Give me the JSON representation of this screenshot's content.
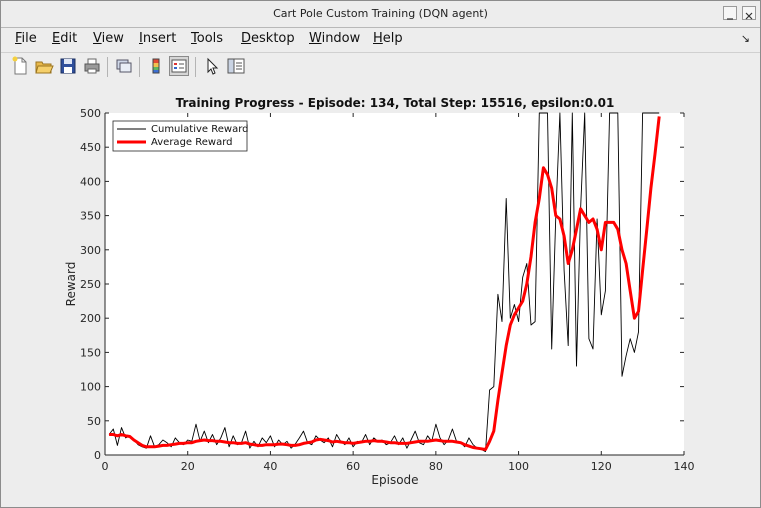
{
  "window": {
    "title": "Cart Pole Custom Training (DQN agent)"
  },
  "menu": {
    "items": [
      {
        "mnemonic": "F",
        "rest": "ile"
      },
      {
        "mnemonic": "E",
        "rest": "dit"
      },
      {
        "mnemonic": "V",
        "rest": "iew"
      },
      {
        "mnemonic": "I",
        "rest": "nsert"
      },
      {
        "mnemonic": "T",
        "rest": "ools"
      },
      {
        "mnemonic": "D",
        "rest": "esktop"
      },
      {
        "mnemonic": "W",
        "rest": "indow"
      },
      {
        "mnemonic": "H",
        "rest": "elp"
      }
    ],
    "dock_glyph": "↘"
  },
  "toolbar": {
    "icons": [
      "new-figure-icon",
      "open-file-icon",
      "save-icon",
      "print-icon",
      "link-axes-icon",
      "insert-colorbar-icon",
      "insert-legend-icon",
      "pointer-icon",
      "property-editor-icon"
    ]
  },
  "chart_data": {
    "type": "line",
    "title": "Training Progress - Episode: 134, Total Step: 15516, epsilon:0.01",
    "xlabel": "Episode",
    "ylabel": "Reward",
    "xlim": [
      0,
      140
    ],
    "ylim": [
      0,
      500
    ],
    "xticks": [
      "0",
      "20",
      "40",
      "60",
      "80",
      "100",
      "120",
      "140"
    ],
    "yticks": [
      "0",
      "50",
      "100",
      "150",
      "200",
      "250",
      "300",
      "350",
      "400",
      "450",
      "500"
    ],
    "grid": false,
    "legend_position": "top-left",
    "series": [
      {
        "name": "Cumulative Reward",
        "color": "#000000",
        "style": "thin",
        "x": [
          1,
          2,
          3,
          4,
          5,
          6,
          7,
          8,
          9,
          10,
          11,
          12,
          13,
          14,
          15,
          16,
          17,
          18,
          19,
          20,
          21,
          22,
          23,
          24,
          25,
          26,
          27,
          28,
          29,
          30,
          31,
          32,
          33,
          34,
          35,
          36,
          37,
          38,
          39,
          40,
          41,
          42,
          43,
          44,
          45,
          46,
          47,
          48,
          49,
          50,
          51,
          52,
          53,
          54,
          55,
          56,
          57,
          58,
          59,
          60,
          61,
          62,
          63,
          64,
          65,
          66,
          67,
          68,
          69,
          70,
          71,
          72,
          73,
          74,
          75,
          76,
          77,
          78,
          79,
          80,
          81,
          82,
          83,
          84,
          85,
          86,
          87,
          88,
          89,
          90,
          91,
          92,
          93,
          94,
          95,
          96,
          97,
          98,
          99,
          100,
          101,
          102,
          103,
          104,
          105,
          106,
          107,
          108,
          109,
          110,
          111,
          112,
          113,
          114,
          115,
          116,
          117,
          118,
          119,
          120,
          121,
          122,
          123,
          124,
          125,
          126,
          127,
          128,
          129,
          130,
          131,
          132,
          133,
          134
        ],
        "y": [
          30,
          38,
          14,
          40,
          25,
          28,
          22,
          15,
          12,
          10,
          28,
          12,
          15,
          22,
          18,
          12,
          25,
          18,
          15,
          22,
          20,
          45,
          20,
          35,
          18,
          30,
          15,
          25,
          40,
          12,
          28,
          15,
          18,
          35,
          10,
          20,
          12,
          25,
          18,
          28,
          12,
          22,
          15,
          20,
          10,
          16,
          25,
          35,
          18,
          15,
          28,
          22,
          18,
          25,
          12,
          30,
          20,
          15,
          25,
          12,
          20,
          18,
          30,
          15,
          25,
          20,
          22,
          15,
          18,
          28,
          15,
          25,
          10,
          22,
          35,
          18,
          15,
          28,
          20,
          45,
          25,
          15,
          22,
          38,
          20,
          18,
          12,
          25,
          15,
          10,
          8,
          5,
          95,
          100,
          235,
          195,
          375,
          200,
          220,
          195,
          260,
          280,
          190,
          195,
          500,
          500,
          500,
          155,
          350,
          500,
          270,
          160,
          500,
          130,
          360,
          500,
          170,
          155,
          345,
          205,
          240,
          500,
          500,
          500,
          115,
          145,
          170,
          150,
          180,
          500,
          500,
          500,
          500,
          500
        ]
      },
      {
        "name": "Average Reward",
        "color": "#ff0000",
        "style": "thick",
        "x": [
          1,
          2,
          3,
          4,
          5,
          6,
          7,
          8,
          9,
          10,
          11,
          12,
          13,
          14,
          15,
          16,
          17,
          18,
          19,
          20,
          21,
          22,
          23,
          24,
          25,
          26,
          27,
          28,
          29,
          30,
          31,
          32,
          33,
          34,
          35,
          36,
          37,
          38,
          39,
          40,
          41,
          42,
          43,
          44,
          45,
          46,
          47,
          48,
          49,
          50,
          51,
          52,
          53,
          54,
          55,
          56,
          57,
          58,
          59,
          60,
          61,
          62,
          63,
          64,
          65,
          66,
          67,
          68,
          69,
          70,
          71,
          72,
          73,
          74,
          75,
          76,
          77,
          78,
          79,
          80,
          81,
          82,
          83,
          84,
          85,
          86,
          87,
          88,
          89,
          90,
          91,
          92,
          93,
          94,
          95,
          96,
          97,
          98,
          99,
          100,
          101,
          102,
          103,
          104,
          105,
          106,
          107,
          108,
          109,
          110,
          111,
          112,
          113,
          114,
          115,
          116,
          117,
          118,
          119,
          120,
          121,
          122,
          123,
          124,
          125,
          126,
          127,
          128,
          129,
          130,
          131,
          132,
          133,
          134
        ],
        "y": [
          30,
          30,
          28,
          30,
          28,
          27,
          22,
          18,
          14,
          12,
          12,
          12,
          13,
          14,
          14,
          15,
          16,
          17,
          17,
          18,
          18,
          20,
          21,
          22,
          21,
          21,
          20,
          20,
          19,
          18,
          18,
          17,
          17,
          18,
          16,
          15,
          14,
          14,
          15,
          15,
          15,
          16,
          16,
          15,
          14,
          14,
          15,
          17,
          18,
          19,
          22,
          23,
          22,
          21,
          19,
          20,
          19,
          18,
          18,
          17,
          18,
          19,
          20,
          20,
          21,
          20,
          20,
          19,
          18,
          18,
          17,
          17,
          17,
          18,
          19,
          20,
          20,
          20,
          21,
          22,
          21,
          20,
          20,
          20,
          19,
          18,
          15,
          13,
          11,
          10,
          9,
          8,
          20,
          35,
          80,
          120,
          160,
          190,
          205,
          215,
          225,
          250,
          290,
          340,
          375,
          420,
          410,
          390,
          350,
          345,
          320,
          280,
          300,
          330,
          360,
          350,
          340,
          345,
          330,
          300,
          340,
          340,
          340,
          330,
          300,
          280,
          240,
          200,
          210,
          270,
          330,
          390,
          440,
          495
        ]
      }
    ]
  }
}
